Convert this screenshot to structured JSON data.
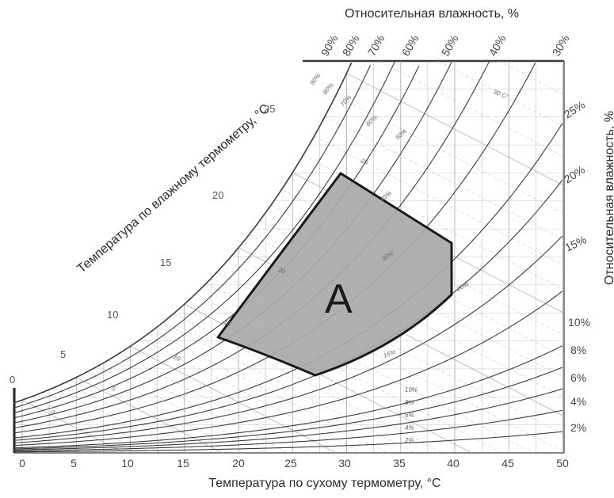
{
  "titles": {
    "x_axis": "Температура по сухому термометру, °C",
    "wet_bulb": "Температура по влажному термометру, °C",
    "rh_top": "Относительная влажность, %",
    "rh_right": "Относительная влажность, %"
  },
  "zone": {
    "label": "A",
    "fill": "#a9a9a9",
    "stroke": "#1a1a1a"
  },
  "colors": {
    "curve": "#3a3a3a",
    "grid": "#8f8f8f",
    "wetbulb": "#a8a8a8"
  },
  "x_ticks": [
    "0",
    "5",
    "10",
    "15",
    "20",
    "25",
    "30",
    "35",
    "40",
    "45",
    "50"
  ],
  "top_rh_labels": [
    "90%",
    "80%",
    "70%",
    "60%",
    "50%",
    "40%",
    "30%"
  ],
  "right_rh_labels": [
    "25%",
    "20%",
    "15%",
    "10%",
    "8%",
    "6%",
    "4%",
    "2%"
  ],
  "wet_bulb_ticks": [
    "0",
    "5",
    "10",
    "15",
    "20",
    "25"
  ],
  "inner_rh_labels": [
    "90%",
    "80%",
    "70%",
    "60%",
    "50%",
    "40%",
    "30%",
    "20%",
    "15%",
    "10%",
    "8%",
    "6%",
    "4%",
    "2%"
  ],
  "inner_wet_labels": [
    "30 C°",
    "25",
    "20",
    "15",
    "10",
    "5",
    "0"
  ],
  "chart_data": {
    "type": "psychrometric",
    "x_range": [
      0,
      50
    ],
    "rh_curves_percent": [
      90,
      80,
      70,
      60,
      50,
      40,
      30,
      25,
      20,
      15,
      10,
      8,
      6,
      4,
      2
    ],
    "wet_bulb_lines_c": [
      0,
      5,
      10,
      15,
      20,
      25,
      30
    ],
    "zone_A": {
      "dry_bulb_c": [
        18,
        27,
        30,
        40,
        40
      ],
      "rh_percent": [
        null,
        null,
        null,
        20,
        null
      ]
    }
  }
}
